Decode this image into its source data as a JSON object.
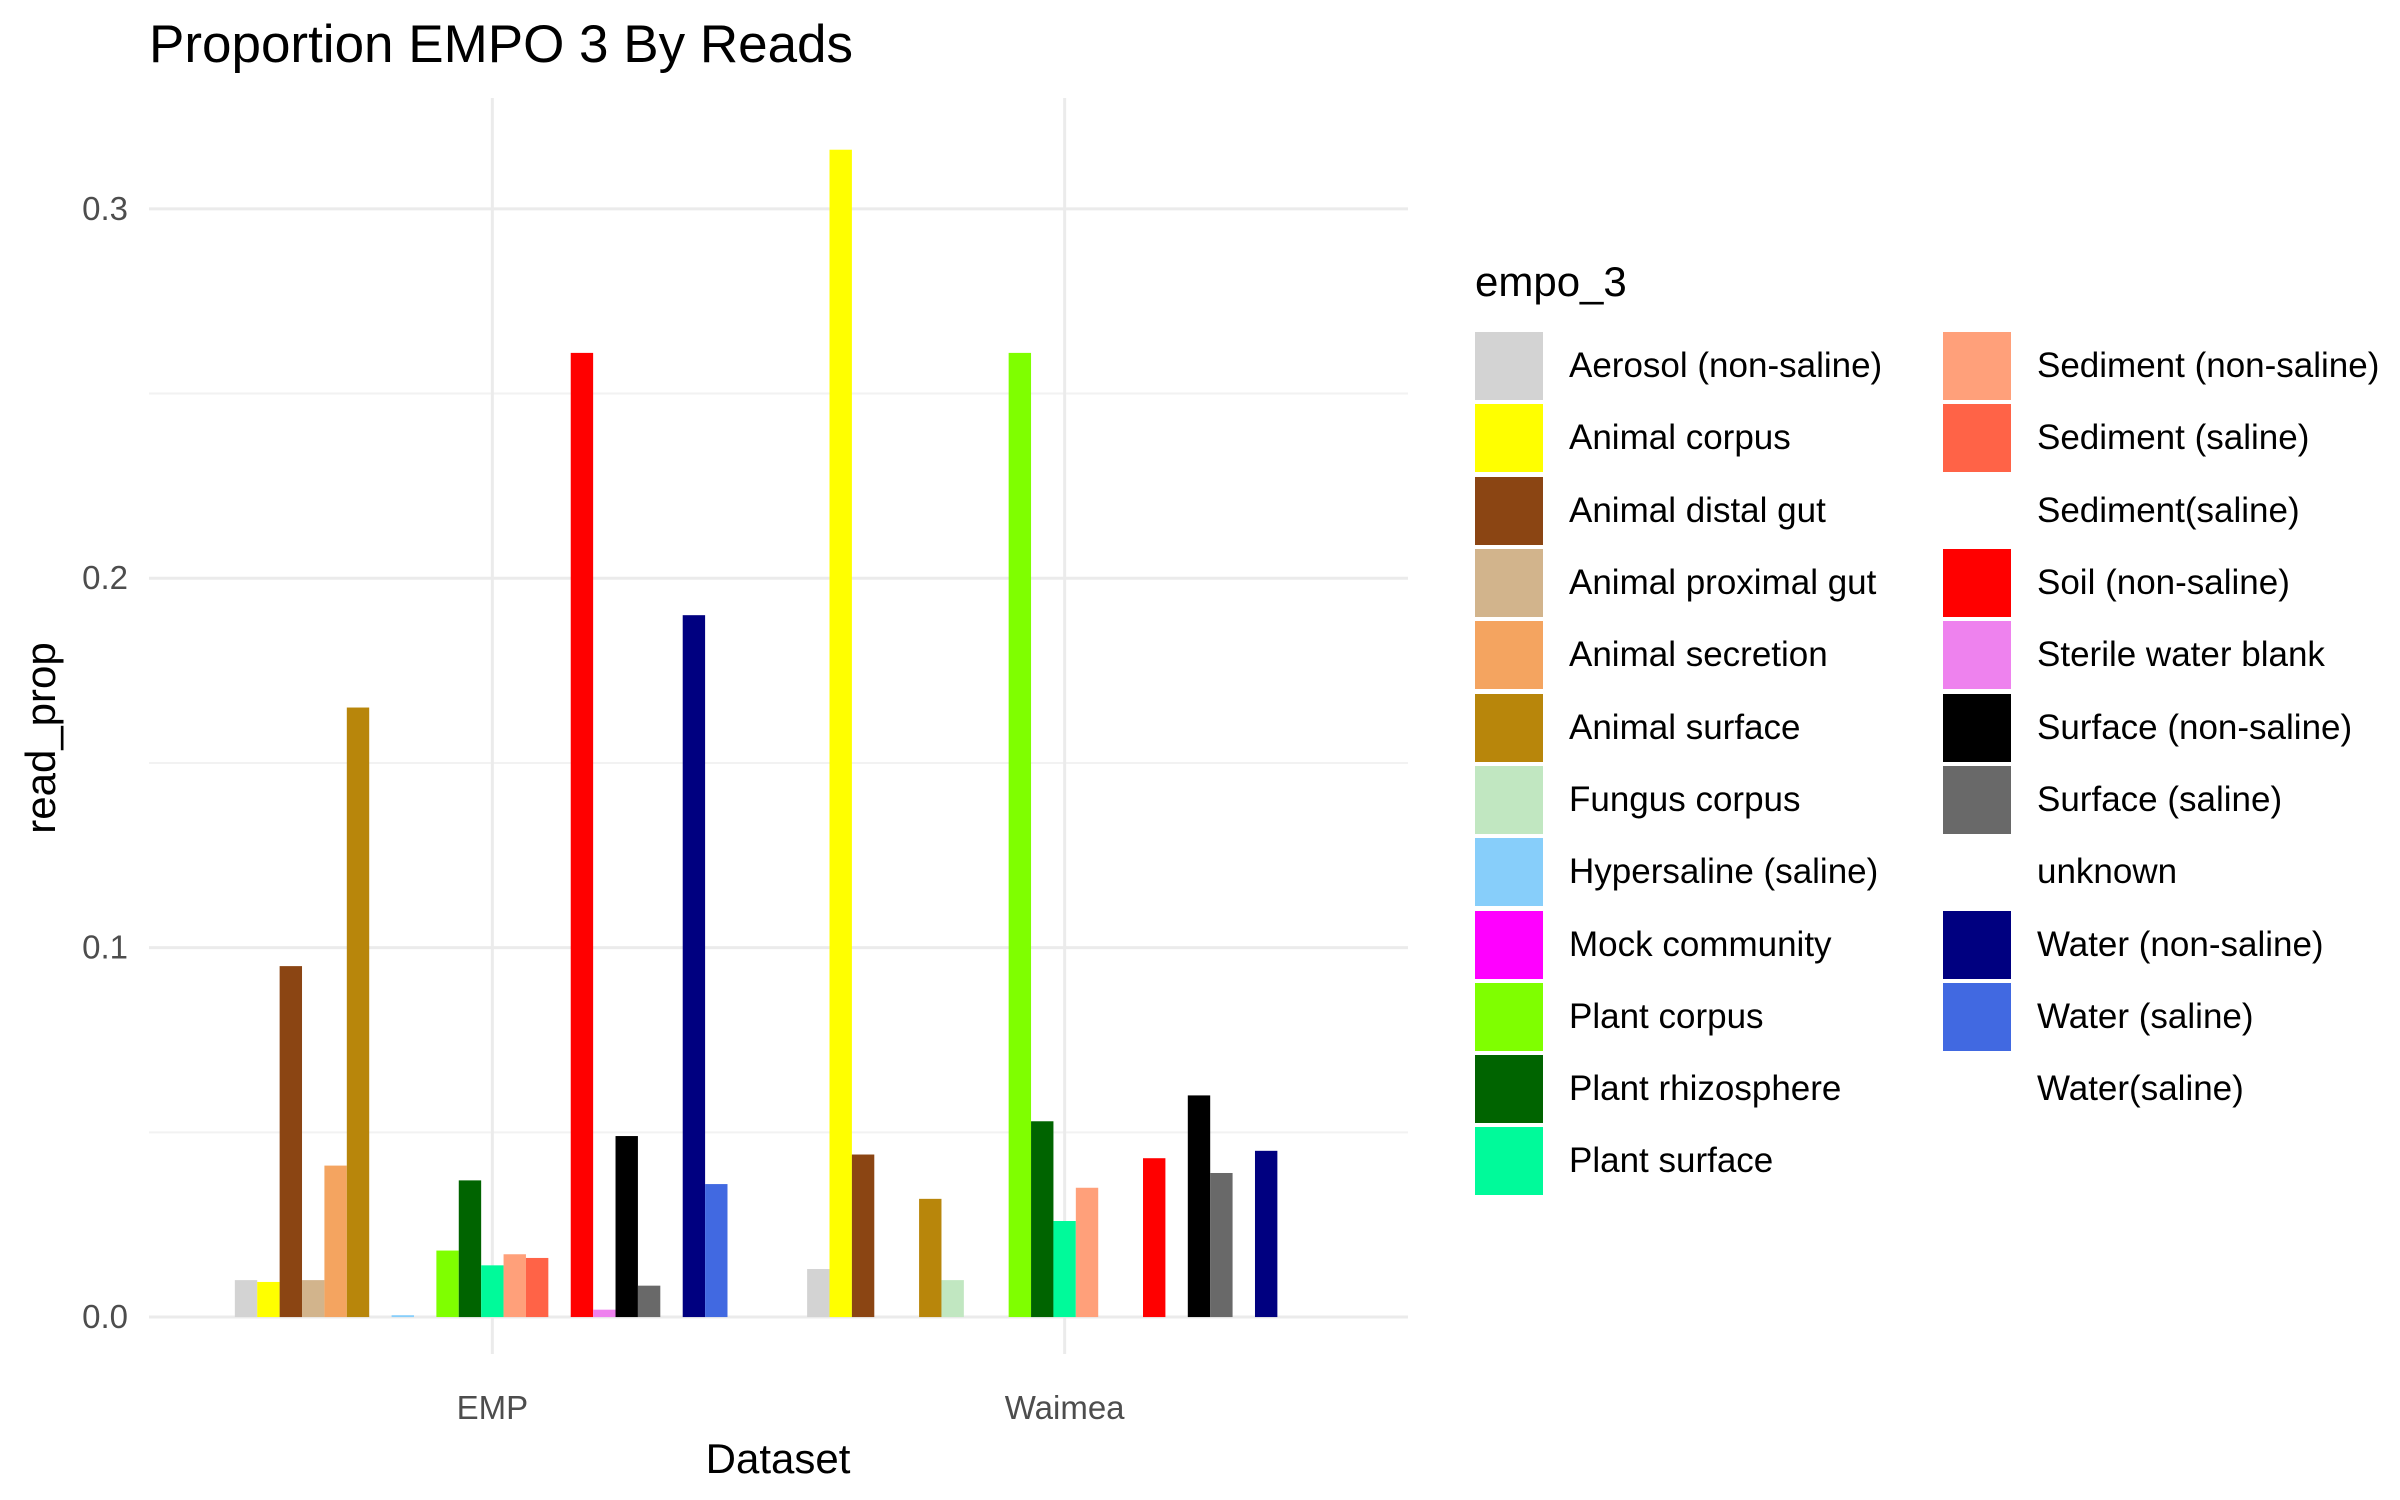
{
  "chart_data": {
    "type": "bar",
    "title": "Proportion EMPO 3 By Reads",
    "xlabel": "Dataset",
    "ylabel": "read_prop",
    "ylim": [
      -0.01,
      0.33
    ],
    "yticks": [
      0.0,
      0.1,
      0.2,
      0.3
    ],
    "ytick_labels": [
      "0.0",
      "0.1",
      "0.2",
      "0.3"
    ],
    "categories": [
      "EMP",
      "Waimea"
    ],
    "grid": true,
    "legend_title": "empo_3",
    "legend_position": "right",
    "series": [
      {
        "name": "Aerosol (non-saline)",
        "color": "#D3D3D3",
        "values": [
          0.01,
          0.013
        ]
      },
      {
        "name": "Animal corpus",
        "color": "#FFFF00",
        "values": [
          0.0095,
          0.316
        ]
      },
      {
        "name": "Animal distal gut",
        "color": "#8B4513",
        "values": [
          0.095,
          0.044
        ]
      },
      {
        "name": "Animal proximal gut",
        "color": "#D2B48C",
        "values": [
          0.01,
          null
        ]
      },
      {
        "name": "Animal secretion",
        "color": "#F4A460",
        "values": [
          0.041,
          null
        ]
      },
      {
        "name": "Animal surface",
        "color": "#B8860B",
        "values": [
          0.165,
          0.032
        ]
      },
      {
        "name": "Fungus corpus",
        "color": "#C1E7C1",
        "values": [
          null,
          0.01
        ]
      },
      {
        "name": "Hypersaline (saline)",
        "color": "#87CEFA",
        "values": [
          0.0005,
          null
        ]
      },
      {
        "name": "Mock community",
        "color": "#FF00FF",
        "values": [
          null,
          null
        ]
      },
      {
        "name": "Plant corpus",
        "color": "#7FFF00",
        "values": [
          0.018,
          0.261
        ]
      },
      {
        "name": "Plant rhizosphere",
        "color": "#006400",
        "values": [
          0.037,
          0.053
        ]
      },
      {
        "name": "Plant surface",
        "color": "#00FA9A",
        "values": [
          0.014,
          0.026
        ]
      },
      {
        "name": "Sediment (non-saline)",
        "color": "#FFA07A",
        "values": [
          0.017,
          0.035
        ]
      },
      {
        "name": "Sediment (saline)",
        "color": "#FF6347",
        "values": [
          0.016,
          null
        ]
      },
      {
        "name": "Sediment(saline)",
        "color": "#FFFFFF",
        "values": [
          null,
          null
        ]
      },
      {
        "name": "Soil (non-saline)",
        "color": "#FF0000",
        "values": [
          0.261,
          0.043
        ]
      },
      {
        "name": "Sterile water blank",
        "color": "#EE82EE",
        "values": [
          0.002,
          null
        ]
      },
      {
        "name": "Surface (non-saline)",
        "color": "#000000",
        "values": [
          0.049,
          0.06
        ]
      },
      {
        "name": "Surface (saline)",
        "color": "#696969",
        "values": [
          0.0085,
          0.039
        ]
      },
      {
        "name": "unknown",
        "color": "#FFFFFF",
        "values": [
          null,
          null
        ]
      },
      {
        "name": "Water (non-saline)",
        "color": "#000080",
        "values": [
          0.19,
          0.045
        ]
      },
      {
        "name": "Water (saline)",
        "color": "#4169E1",
        "values": [
          0.036,
          null
        ]
      },
      {
        "name": "Water(saline)",
        "color": "#FFFFFF",
        "values": [
          null,
          null
        ]
      }
    ]
  }
}
